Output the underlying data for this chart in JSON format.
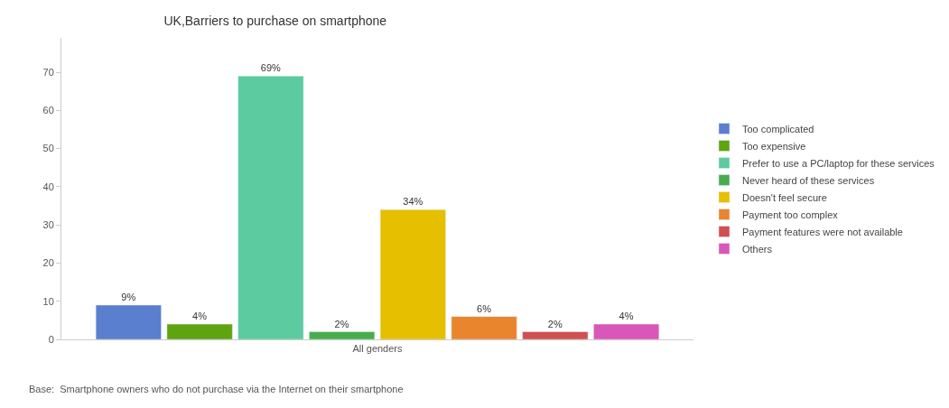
{
  "chart_data": {
    "type": "bar",
    "title": "UK,Barriers to purchase on smartphone",
    "categories": [
      "All genders"
    ],
    "series": [
      {
        "name": "Too complicated",
        "color": "#5b7fcf",
        "values": [
          9
        ],
        "value_labels": [
          "9%"
        ]
      },
      {
        "name": "Too expensive",
        "color": "#5ea40f",
        "values": [
          4
        ],
        "value_labels": [
          "4%"
        ]
      },
      {
        "name": "Prefer to use a PC/laptop for these services",
        "color": "#5ccba0",
        "values": [
          69
        ],
        "value_labels": [
          "69%"
        ]
      },
      {
        "name": "Never heard of these services",
        "color": "#47ad4c",
        "values": [
          2
        ],
        "value_labels": [
          "2%"
        ]
      },
      {
        "name": "Doesn't feel secure",
        "color": "#e6bf00",
        "values": [
          34
        ],
        "value_labels": [
          "34%"
        ]
      },
      {
        "name": "Payment too complex",
        "color": "#e8852d",
        "values": [
          6
        ],
        "value_labels": [
          "6%"
        ]
      },
      {
        "name": "Payment features were not available",
        "color": "#d0504f",
        "values": [
          2
        ],
        "value_labels": [
          "2%"
        ]
      },
      {
        "name": "Others",
        "color": "#d957b8",
        "values": [
          4
        ],
        "value_labels": [
          "4%"
        ]
      }
    ],
    "ylim": [
      0,
      79
    ],
    "yticks": [
      0,
      10,
      20,
      30,
      40,
      50,
      60,
      70
    ],
    "grid": false,
    "legend": "right",
    "annotations": [
      "Base:  Smartphone owners who do not purchase via the Internet on their smartphone"
    ]
  }
}
